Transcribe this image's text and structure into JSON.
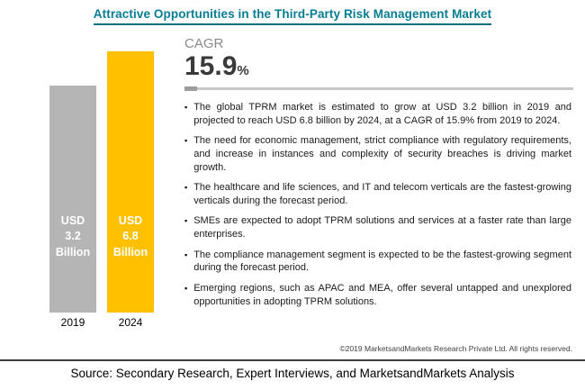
{
  "header": {
    "title": "Attractive Opportunities in the Third-Party Risk Management Market"
  },
  "cagr": {
    "label": "CAGR",
    "value": "15.9",
    "unit": "%"
  },
  "chart": {
    "bars": [
      {
        "year": "2019",
        "label": "USD\n3.2\nBillion",
        "color": "#b5b5b5"
      },
      {
        "year": "2024",
        "label": "USD\n6.8\nBillion",
        "color": "#ffc000"
      }
    ]
  },
  "chart_data": {
    "type": "bar",
    "title": "Attractive Opportunities in the Third-Party Risk Management Market",
    "categories": [
      "2019",
      "2024"
    ],
    "values": [
      3.2,
      6.8
    ],
    "unit": "USD Billion",
    "bar_labels": [
      "USD 3.2 Billion",
      "USD 6.8 Billion"
    ],
    "bar_colors": [
      "#b5b5b5",
      "#ffc000"
    ],
    "cagr_percent": 15.9,
    "xlabel": "",
    "ylabel": "",
    "ylim": [
      0,
      7.5
    ],
    "grid": false,
    "legend": false
  },
  "icons": {
    "bullet": "▪"
  },
  "bullets": [
    "The global TPRM market is estimated to grow at USD 3.2 billion in 2019 and projected to reach USD 6.8 billion by 2024, at a CAGR of 15.9% from 2019 to 2024.",
    "The need for economic management, strict compliance with regulatory requirements, and increase in instances and complexity of security breaches is driving market growth.",
    "The healthcare and life sciences, and IT and telecom verticals are the fastest-growing verticals during the forecast period.",
    "SMEs are expected to adopt TPRM solutions and services at a faster rate than large enterprises.",
    "The compliance management segment is expected to be the fastest-growing segment during the forecast period.",
    "Emerging regions, such as APAC and MEA, offer several untapped and unexplored opportunities in adopting TPRM solutions."
  ],
  "footer": {
    "copyright": "©2019 MarketsandMarkets Research Private Ltd. All rights reserved.",
    "source": "Source: Secondary Research, Expert Interviews, and MarketsandMarkets Analysis"
  }
}
